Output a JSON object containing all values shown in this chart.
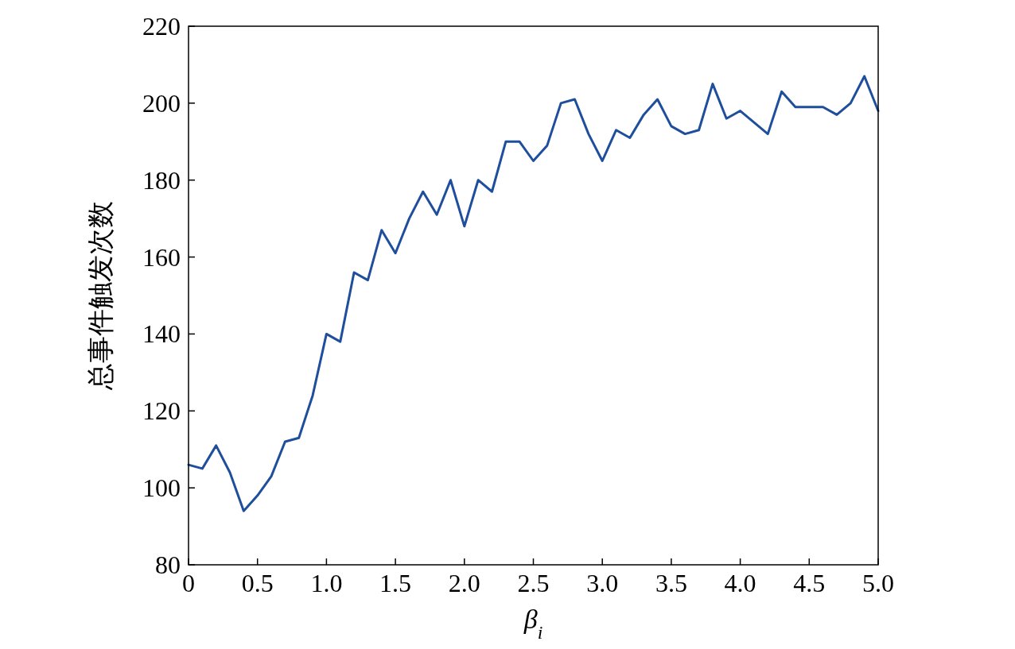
{
  "chart_data": {
    "type": "line",
    "xlabel": "β$_{i}$",
    "ylabel": "总事件触发次数",
    "x": [
      0,
      0.1,
      0.2,
      0.3,
      0.4,
      0.5,
      0.6,
      0.7,
      0.8,
      0.9,
      1.0,
      1.1,
      1.2,
      1.3,
      1.4,
      1.5,
      1.6,
      1.7,
      1.8,
      1.9,
      2.0,
      2.1,
      2.2,
      2.3,
      2.4,
      2.5,
      2.6,
      2.7,
      2.8,
      2.9,
      3.0,
      3.1,
      3.2,
      3.3,
      3.4,
      3.5,
      3.6,
      3.7,
      3.8,
      3.9,
      4.0,
      4.1,
      4.2,
      4.3,
      4.4,
      4.5,
      4.6,
      4.7,
      4.8,
      4.9,
      5.0
    ],
    "series": [
      {
        "color": "#1f4e9c",
        "values": [
          106,
          105,
          111,
          104,
          94,
          98,
          103,
          112,
          113,
          124,
          140,
          138,
          156,
          154,
          167,
          161,
          170,
          177,
          171,
          180,
          168,
          180,
          177,
          190,
          190,
          185,
          189,
          200,
          201,
          192,
          185,
          193,
          191,
          197,
          201,
          194,
          192,
          193,
          205,
          196,
          198,
          195,
          192,
          203,
          199,
          199,
          199,
          197,
          200,
          207,
          198
        ]
      }
    ],
    "xlim": [
      0,
      5
    ],
    "ylim": [
      80,
      220
    ],
    "xticks": [
      0,
      0.5,
      {
        "value": 1,
        "label": "1.0"
      },
      1.5,
      {
        "value": 2,
        "label": "2.0"
      },
      2.5,
      {
        "value": 3,
        "label": "3.0"
      },
      3.5,
      {
        "value": 4,
        "label": "4.0"
      },
      4.5,
      {
        "value": 5,
        "label": "5.0"
      }
    ],
    "yticks": [
      80,
      100,
      120,
      140,
      160,
      180,
      200,
      220
    ],
    "marker": "none",
    "line_style": "solid"
  }
}
